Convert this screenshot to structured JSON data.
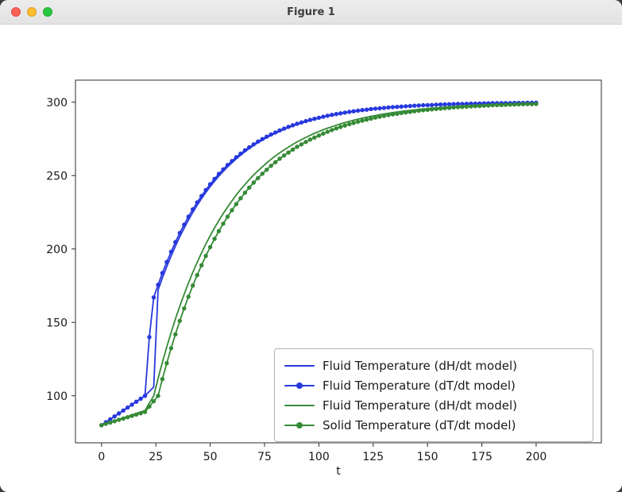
{
  "window": {
    "title": "Figure 1",
    "controls": [
      {
        "name": "close",
        "color": "#ff5f57"
      },
      {
        "name": "minimize",
        "color": "#febc2e"
      },
      {
        "name": "zoom",
        "color": "#28c840"
      }
    ]
  },
  "chart_data": {
    "type": "line",
    "title": "",
    "xlabel": "t",
    "ylabel": "",
    "xlim": [
      -12,
      230
    ],
    "ylim": [
      68,
      315
    ],
    "xticks": [
      0,
      25,
      50,
      75,
      100,
      125,
      150,
      175,
      200
    ],
    "yticks": [
      100,
      150,
      200,
      250,
      300
    ],
    "grid": false,
    "legend_position": "lower right",
    "t": [
      0,
      2,
      4,
      6,
      8,
      10,
      12,
      14,
      16,
      18,
      20,
      22,
      24,
      26,
      28,
      30,
      32,
      34,
      36,
      38,
      40,
      42,
      44,
      46,
      48,
      50,
      52,
      54,
      56,
      58,
      60,
      62,
      64,
      66,
      68,
      70,
      72,
      74,
      76,
      78,
      80,
      82,
      84,
      86,
      88,
      90,
      92,
      94,
      96,
      98,
      100,
      102,
      104,
      106,
      108,
      110,
      112,
      114,
      116,
      118,
      120,
      122,
      124,
      126,
      128,
      130,
      132,
      134,
      136,
      138,
      140,
      142,
      144,
      146,
      148,
      150,
      152,
      154,
      156,
      158,
      160,
      162,
      164,
      166,
      168,
      170,
      172,
      174,
      176,
      178,
      180,
      182,
      184,
      186,
      188,
      190,
      192,
      194,
      196,
      198,
      200
    ],
    "series": [
      {
        "name": "Fluid Temperature (dH/dt model)",
        "color": "#2638dd",
        "marker": false,
        "values": [
          80,
          82,
          84,
          86,
          88,
          90,
          92,
          94,
          96,
          98,
          100,
          103,
          106,
          172,
          180.3,
          188,
          195.2,
          202,
          208.3,
          214.2,
          219.7,
          224.9,
          229.8,
          234.3,
          238.5,
          242.5,
          246.2,
          249.7,
          252.9,
          256,
          258.8,
          261.4,
          263.9,
          266.3,
          268.4,
          270.5,
          272.4,
          274.2,
          275.8,
          277.4,
          278.8,
          280.2,
          281.5,
          282.7,
          283.8,
          284.8,
          285.8,
          286.7,
          287.6,
          288.4,
          289.1,
          289.8,
          290.5,
          291.1,
          291.7,
          292.2,
          292.7,
          293.2,
          293.6,
          294,
          294.4,
          294.8,
          295.1,
          295.4,
          295.7,
          296,
          296.3,
          296.5,
          296.7,
          296.9,
          297.1,
          297.3,
          297.5,
          297.7,
          297.8,
          298,
          298.1,
          298.2,
          298.3,
          298.4,
          298.5,
          298.6,
          298.7,
          298.8,
          298.9,
          298.9,
          299,
          299.1,
          299.1,
          299.2,
          299.2,
          299.3,
          299.3,
          299.4,
          299.4,
          299.5,
          299.5,
          299.5,
          299.6,
          299.6,
          299.6
        ]
      },
      {
        "name": "Fluid Temperature (dT/dt model)",
        "color": "#2638dd",
        "marker": true,
        "values": [
          80,
          82,
          84,
          86,
          88,
          90,
          92,
          94,
          96,
          98,
          100,
          140,
          167,
          175.6,
          183.6,
          191.1,
          198.1,
          204.7,
          210.9,
          216.6,
          222,
          227,
          231.7,
          236.1,
          240.2,
          244.1,
          247.7,
          251.1,
          254.2,
          257.2,
          259.9,
          262.5,
          264.9,
          267.2,
          269.3,
          271.3,
          273.2,
          274.9,
          276.5,
          278,
          279.4,
          280.8,
          282,
          283.2,
          284.3,
          285.3,
          286.2,
          287.1,
          287.9,
          288.7,
          289.4,
          290.1,
          290.8,
          291.4,
          291.9,
          292.4,
          292.9,
          293.4,
          293.8,
          294.2,
          294.6,
          294.9,
          295.3,
          295.6,
          295.8,
          296.1,
          296.4,
          296.6,
          296.8,
          297,
          297.2,
          297.4,
          297.6,
          297.7,
          297.9,
          298,
          298.1,
          298.3,
          298.4,
          298.5,
          298.6,
          298.7,
          298.8,
          298.8,
          298.9,
          299,
          299,
          299.1,
          299.2,
          299.2,
          299.3,
          299.3,
          299.4,
          299.4,
          299.4,
          299.5,
          299.5,
          299.5,
          299.6,
          299.6,
          299.6
        ]
      },
      {
        "name": "Fluid Temperature (dH/dt model)",
        "color": "#358a35",
        "marker": false,
        "values": [
          80,
          81,
          82,
          83,
          84,
          85,
          86,
          87,
          88,
          89,
          90,
          95,
          100,
          111.8,
          122.8,
          133.2,
          143.1,
          152.3,
          161,
          169.1,
          176.8,
          184.1,
          190.9,
          197.3,
          203.4,
          209,
          214.4,
          219.4,
          224.2,
          228.6,
          232.8,
          236.8,
          240.5,
          244,
          247.3,
          250.4,
          253.3,
          256,
          258.6,
          261.1,
          263.4,
          265.5,
          267.5,
          269.4,
          271.2,
          272.9,
          274.5,
          276,
          277.4,
          278.8,
          280,
          281.2,
          282.3,
          283.3,
          284.3,
          285.2,
          286.1,
          286.9,
          287.7,
          288.4,
          289.1,
          289.7,
          290.4,
          290.9,
          291.5,
          292,
          292.4,
          292.9,
          293.3,
          293.7,
          294.1,
          294.4,
          294.7,
          295.1,
          295.3,
          295.6,
          295.9,
          296.1,
          296.4,
          296.6,
          296.8,
          297,
          297.1,
          297.3,
          297.5,
          297.6,
          297.8,
          297.9,
          298,
          298.1,
          298.2,
          298.3,
          298.4,
          298.5,
          298.6,
          298.7,
          298.8,
          298.8,
          298.9,
          299,
          299
        ]
      },
      {
        "name": "Solid Temperature (dT/dt model)",
        "color": "#358a35",
        "marker": true,
        "values": [
          80,
          80.9,
          81.8,
          82.7,
          83.6,
          84.5,
          85.4,
          86.3,
          87.2,
          88.1,
          89,
          92.7,
          96.3,
          100,
          111.4,
          122.2,
          132.4,
          141.9,
          151,
          159.5,
          167.5,
          175.1,
          182.2,
          188.9,
          195.3,
          201.3,
          206.9,
          212.2,
          217.2,
          222,
          226.4,
          230.6,
          234.6,
          238.3,
          241.8,
          245.2,
          248.3,
          251.3,
          254,
          256.7,
          259.1,
          261.5,
          263.7,
          265.7,
          267.7,
          269.6,
          271.3,
          272.9,
          274.5,
          275.9,
          277.3,
          278.6,
          279.8,
          281,
          282.1,
          283.1,
          284.1,
          285,
          285.8,
          286.7,
          287.4,
          288.1,
          288.8,
          289.5,
          290.1,
          290.6,
          291.2,
          291.7,
          292.1,
          292.6,
          293,
          293.4,
          293.8,
          294.2,
          294.5,
          294.8,
          295.1,
          295.4,
          295.6,
          295.9,
          296.1,
          296.4,
          296.6,
          296.8,
          296.9,
          297.1,
          297.3,
          297.4,
          297.6,
          297.7,
          297.9,
          298,
          298.1,
          298.2,
          298.3,
          298.4,
          298.5,
          298.6,
          298.7,
          298.7,
          298.8
        ]
      }
    ]
  }
}
